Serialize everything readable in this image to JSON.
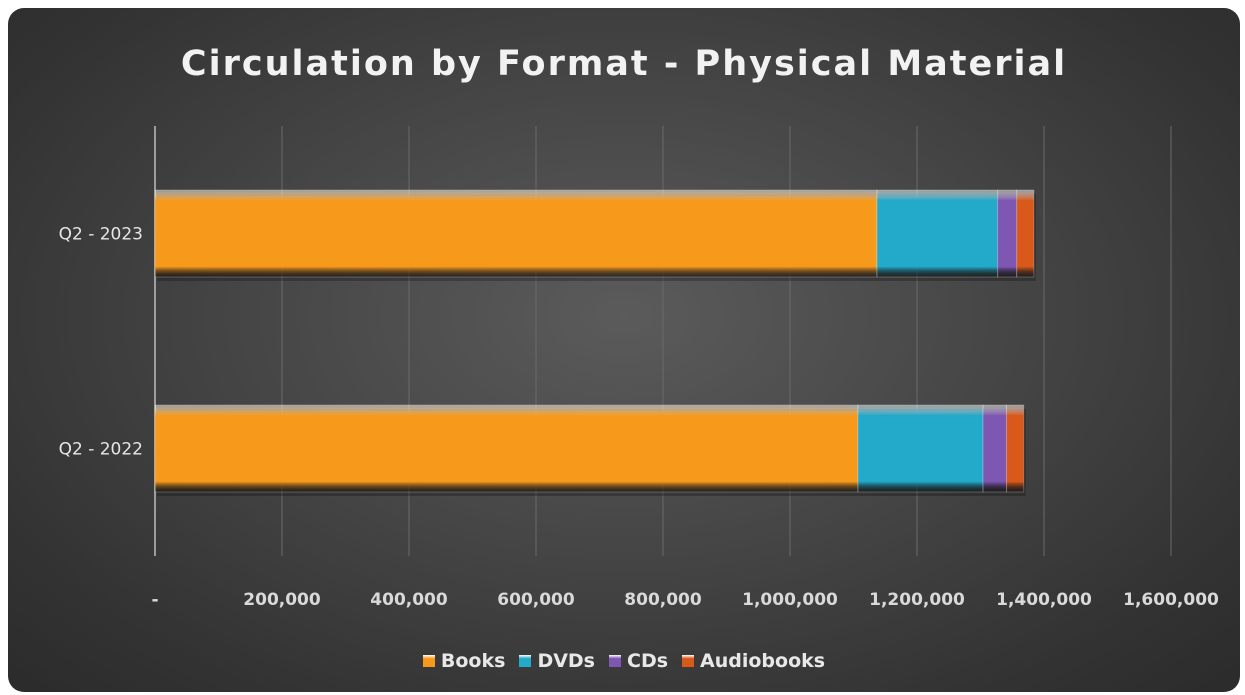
{
  "chart_data": {
    "type": "bar",
    "orientation": "horizontal",
    "stacked": true,
    "title": "Circulation by Format - Physical Material",
    "categories": [
      "Q2 - 2023",
      "Q2 - 2022"
    ],
    "series": [
      {
        "name": "Books",
        "values": [
          1137000,
          1107000
        ],
        "color": "#f79a1c"
      },
      {
        "name": "DVDs",
        "values": [
          190000,
          197000
        ],
        "color": "#23a9c9"
      },
      {
        "name": "CDs",
        "values": [
          30000,
          37000
        ],
        "color": "#7e57b3"
      },
      {
        "name": "Audiobooks",
        "values": [
          27000,
          27000
        ],
        "color": "#d9591a"
      }
    ],
    "x_ticks": [
      0,
      200000,
      400000,
      600000,
      800000,
      1000000,
      1200000,
      1400000,
      1600000
    ],
    "x_tick_labels": [
      "-",
      "200,000",
      "400,000",
      "600,000",
      "800,000",
      "1,000,000",
      "1,200,000",
      "1,400,000",
      "1,600,000"
    ],
    "xlim": [
      0,
      1600000
    ],
    "grid": true,
    "legend_position": "bottom"
  }
}
